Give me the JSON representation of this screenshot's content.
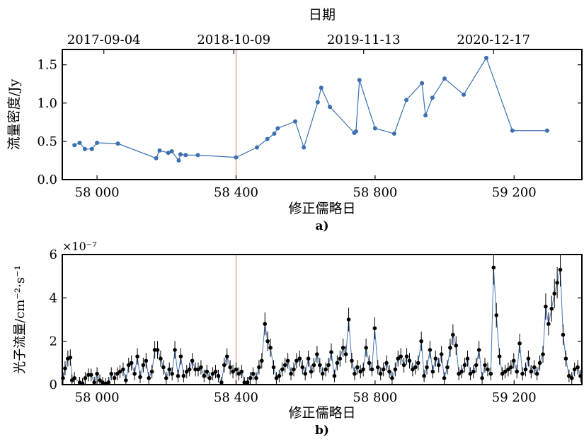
{
  "figure": {
    "panel_a_label": "a)",
    "panel_b_label": "b)"
  },
  "colors": {
    "series_a": "#3a6fb0",
    "series_b_line": "#4a78b8",
    "series_b_points": "#000000",
    "marker_line": "#e8907a"
  },
  "chart_data": [
    {
      "type": "line",
      "panel": "a)",
      "top_axis_label": "日期",
      "top_ticks": [
        "2017-09-04",
        "2018-10-09",
        "2019-11-13",
        "2020-12-17"
      ],
      "xlabel": "修正儒略日",
      "ylabel": "流量密度/Jy",
      "xlim": [
        57900,
        59395
      ],
      "ylim": [
        0.0,
        1.7
      ],
      "xticks": [
        58000,
        58400,
        58800,
        59200
      ],
      "xtick_labels": [
        "58 000",
        "58 400",
        "58 800",
        "59 200"
      ],
      "yticks": [
        0.0,
        0.5,
        1.0,
        1.5
      ],
      "ytick_labels": [
        "0.0",
        "0.5",
        "1.0",
        "1.5"
      ],
      "vline_x": 58400,
      "grid": false,
      "x": [
        57935,
        57950,
        57965,
        57985,
        58000,
        58060,
        58170,
        58180,
        58205,
        58215,
        58235,
        58240,
        58255,
        58290,
        58400,
        58460,
        58490,
        58510,
        58520,
        58570,
        58595,
        58635,
        58645,
        58670,
        58740,
        58745,
        58755,
        58800,
        58855,
        58890,
        58935,
        58945,
        58965,
        59000,
        59055,
        59120,
        59195,
        59295
      ],
      "y": [
        0.45,
        0.48,
        0.4,
        0.4,
        0.48,
        0.47,
        0.28,
        0.38,
        0.35,
        0.37,
        0.25,
        0.33,
        0.32,
        0.32,
        0.29,
        0.42,
        0.53,
        0.6,
        0.67,
        0.76,
        0.42,
        1.01,
        1.2,
        0.95,
        0.61,
        0.63,
        1.3,
        0.67,
        0.6,
        1.04,
        1.26,
        0.84,
        1.07,
        1.32,
        1.11,
        1.59,
        0.64,
        0.64
      ]
    },
    {
      "type": "scatter",
      "panel": "b)",
      "xlabel": "修正儒略日",
      "ylabel": "光子流量/cm⁻²·s⁻¹",
      "y_multiplier_label": "×10⁻⁷",
      "xlim": [
        57900,
        59395
      ],
      "ylim": [
        0,
        6
      ],
      "xticks": [
        58000,
        58400,
        58800,
        59200
      ],
      "xtick_labels": [
        "58 000",
        "58 400",
        "58 800",
        "59 200"
      ],
      "yticks": [
        0,
        2,
        4,
        6
      ],
      "ytick_labels": [
        "0",
        "2",
        "4",
        "6"
      ],
      "vline_x": 58400,
      "grid": false,
      "error_bars": true,
      "x": [
        57902,
        57908,
        57916,
        57923,
        57928,
        57935,
        57950,
        57958,
        57966,
        57975,
        57983,
        57992,
        58000,
        58008,
        58016,
        58025,
        58033,
        58041,
        58050,
        58058,
        58066,
        58075,
        58083,
        58091,
        58099,
        58108,
        58116,
        58124,
        58133,
        58141,
        58149,
        58158,
        58166,
        58174,
        58183,
        58191,
        58199,
        58208,
        58216,
        58224,
        58233,
        58241,
        58249,
        58258,
        58266,
        58274,
        58283,
        58291,
        58299,
        58308,
        58316,
        58324,
        58333,
        58341,
        58349,
        58358,
        58366,
        58374,
        58383,
        58391,
        58400,
        58408,
        58416,
        58424,
        58433,
        58441,
        58449,
        58458,
        58466,
        58474,
        58483,
        58491,
        58499,
        58508,
        58516,
        58524,
        58533,
        58541,
        58549,
        58558,
        58566,
        58574,
        58583,
        58591,
        58599,
        58608,
        58616,
        58624,
        58633,
        58641,
        58649,
        58658,
        58666,
        58674,
        58683,
        58691,
        58699,
        58708,
        58716,
        58724,
        58733,
        58741,
        58749,
        58758,
        58766,
        58774,
        58783,
        58791,
        58799,
        58808,
        58816,
        58824,
        58833,
        58841,
        58849,
        58858,
        58866,
        58874,
        58883,
        58891,
        58899,
        58908,
        58916,
        58924,
        58933,
        58941,
        58949,
        58958,
        58966,
        58974,
        58983,
        58991,
        58999,
        59008,
        59016,
        59024,
        59033,
        59041,
        59049,
        59058,
        59066,
        59074,
        59083,
        59091,
        59099,
        59108,
        59116,
        59124,
        59133,
        59141,
        59149,
        59158,
        59166,
        59174,
        59183,
        59191,
        59199,
        59208,
        59216,
        59224,
        59233,
        59241,
        59249,
        59258,
        59266,
        59274,
        59283,
        59291,
        59299,
        59308,
        59316,
        59324,
        59333,
        59341,
        59349,
        59358,
        59366,
        59374,
        59383,
        59391
      ],
      "y": [
        0.3,
        0.75,
        1.2,
        1.25,
        0.2,
        0.3,
        0.1,
        0.05,
        0.3,
        0.45,
        0.45,
        0.1,
        0.5,
        0.2,
        0.1,
        0.05,
        0.1,
        0.5,
        0.3,
        0.5,
        0.6,
        0.7,
        0.2,
        0.9,
        1.0,
        0.5,
        1.3,
        0.35,
        0.9,
        1.1,
        0.3,
        0.6,
        1.6,
        1.6,
        1.2,
        0.8,
        0.3,
        0.7,
        0.5,
        1.6,
        0.4,
        1.3,
        0.4,
        0.6,
        0.7,
        1.1,
        0.7,
        0.7,
        0.8,
        0.4,
        0.6,
        0.3,
        0.5,
        0.6,
        0.4,
        0.1,
        0.9,
        1.3,
        0.8,
        0.6,
        0.7,
        0.5,
        0.6,
        0.1,
        0.1,
        0.3,
        0.5,
        0.3,
        0.8,
        1.1,
        2.8,
        2.0,
        1.7,
        0.8,
        0.3,
        0.4,
        0.7,
        0.9,
        1.1,
        0.5,
        0.7,
        1.1,
        1.2,
        0.8,
        0.5,
        1.2,
        0.6,
        0.9,
        1.4,
        0.9,
        0.5,
        0.7,
        0.9,
        1.5,
        0.4,
        1.0,
        1.2,
        1.7,
        1.4,
        3.0,
        1.1,
        0.5,
        0.8,
        0.6,
        0.7,
        1.7,
        1.0,
        0.7,
        2.6,
        0.8,
        0.5,
        0.7,
        1.0,
        0.6,
        0.3,
        0.7,
        1.2,
        1.3,
        0.9,
        1.3,
        1.1,
        0.7,
        0.8,
        1.0,
        2.0,
        0.4,
        0.8,
        1.6,
        0.6,
        1.2,
        0.9,
        1.4,
        0.3,
        0.8,
        1.7,
        2.3,
        1.8,
        0.5,
        0.6,
        0.9,
        1.2,
        0.5,
        0.6,
        0.9,
        1.6,
        0.3,
        0.9,
        0.7,
        0.5,
        5.4,
        3.2,
        1.3,
        0.5,
        0.6,
        0.7,
        0.8,
        1.1,
        0.6,
        1.9,
        0.5,
        0.7,
        1.2,
        0.6,
        0.8,
        0.5,
        1.0,
        1.4,
        3.6,
        2.8,
        3.5,
        4.2,
        4.7,
        5.3,
        2.3,
        1.2,
        0.4,
        0.3,
        0.7,
        0.8,
        0.4
      ]
    }
  ]
}
